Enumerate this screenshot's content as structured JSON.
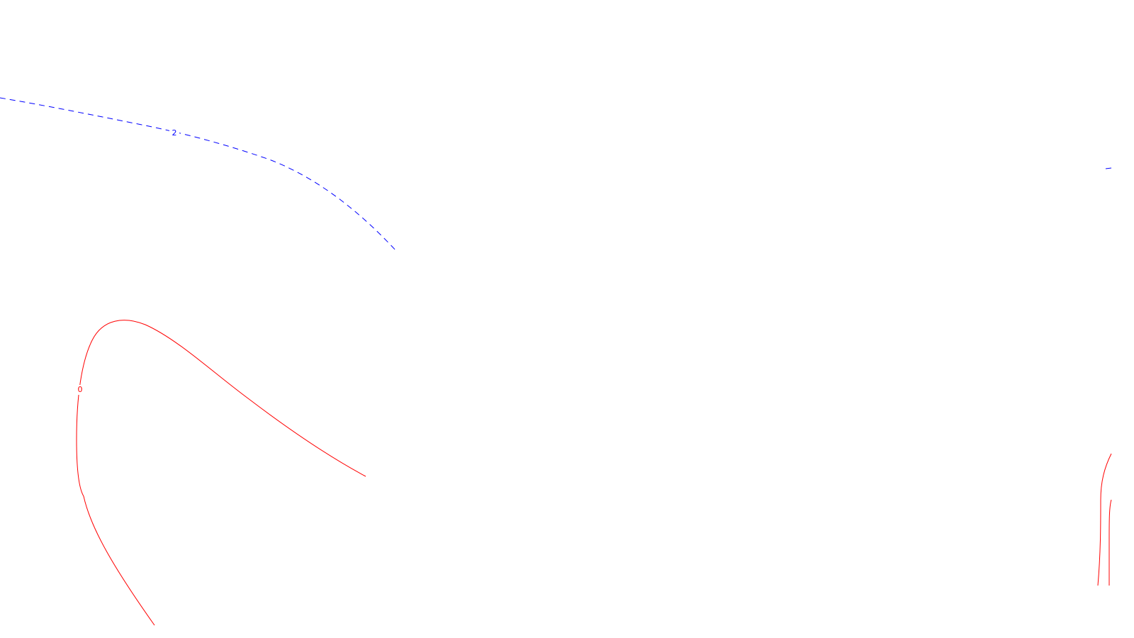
{
  "colors": {
    "background": "#ffffff",
    "negative_contour": "#0000ff",
    "positive_contour": "#ff0000"
  },
  "contours": [
    {
      "id": "contour-2-left",
      "level": "2",
      "style": "dashed",
      "color": "#0000ff"
    },
    {
      "id": "contour-2-right",
      "level": "",
      "style": "dashed",
      "color": "#0000ff"
    },
    {
      "id": "contour-0-left",
      "level": "0",
      "style": "solid",
      "color": "#ff0000"
    },
    {
      "id": "contour-0-right-outer",
      "level": "",
      "style": "solid",
      "color": "#ff0000"
    },
    {
      "id": "contour-0-right-inner",
      "level": "",
      "style": "solid",
      "color": "#ff0000"
    }
  ]
}
